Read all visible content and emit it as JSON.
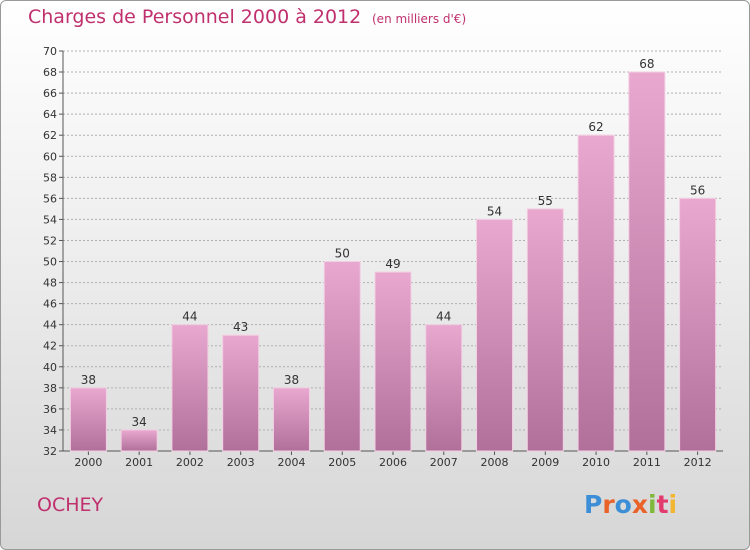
{
  "header": {
    "title": "Charges de Personnel 2000 à 2012",
    "subtitle": "(en milliers d'€)"
  },
  "footer": {
    "town": "OCHEY",
    "logo": "Proxiti"
  },
  "colors": {
    "title": "#c0306e",
    "bar_top": "#e8a8cf",
    "bar_bottom": "#b0709a",
    "grid": "#b0b0b0"
  },
  "chart_data": {
    "type": "bar",
    "title": "Charges de Personnel 2000 à 2012",
    "subtitle": "(en milliers d'€)",
    "categories": [
      "2000",
      "2001",
      "2002",
      "2003",
      "2004",
      "2005",
      "2006",
      "2007",
      "2008",
      "2009",
      "2010",
      "2011",
      "2012"
    ],
    "values": [
      38,
      34,
      44,
      43,
      38,
      50,
      49,
      44,
      54,
      55,
      62,
      68,
      56
    ],
    "ylim": [
      32,
      70
    ],
    "ytick_step": 2,
    "grid": true,
    "data_labels": true
  }
}
